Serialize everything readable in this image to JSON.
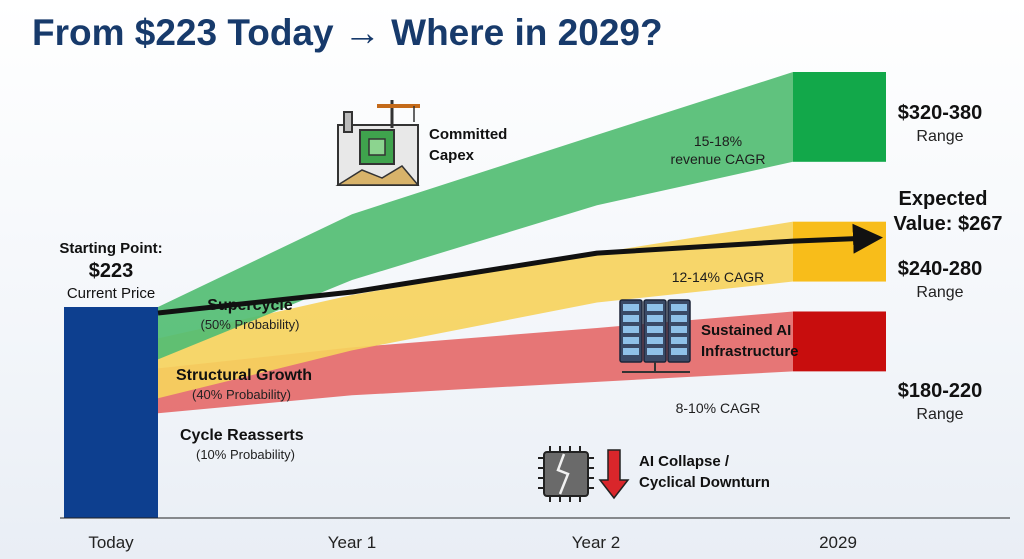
{
  "title": "From $223 Today → Where in 2029?",
  "chart_data": {
    "type": "area",
    "categories": [
      "Today",
      "Year 1",
      "Year 2",
      "2029"
    ],
    "ylim": [
      140,
      400
    ],
    "start": {
      "label": "Starting Point:",
      "value_label": "$223",
      "sublabel": "Current Price",
      "value": 223
    },
    "series": [
      {
        "name": "Supercycle",
        "probability": "(50% Probability)",
        "color": "#52bd73",
        "end_color": "#12a84a",
        "range_label": "$320-380",
        "range_sub": "Range",
        "cagr_label": "15-18% revenue CAGR",
        "upper": [
          223,
          285,
          338,
          380
        ],
        "lower": [
          188,
          241,
          291,
          320
        ]
      },
      {
        "name": "Structural Growth",
        "probability": "(40% Probability)",
        "color": "#f6d25d",
        "end_color": "#f8bd1a",
        "range_label": "$240-280",
        "range_sub": "Range",
        "cagr_label": "12-14% CAGR",
        "upper": [
          202,
          231,
          259,
          280
        ],
        "lower": [
          162,
          194,
          226,
          240
        ]
      },
      {
        "name": "Cycle Reasserts",
        "probability": "(10% Probability)",
        "color": "#e56a6a",
        "end_color": "#c80d0d",
        "range_label": "$180-220",
        "range_sub": "Range",
        "cagr_label": "8-10% CAGR",
        "upper": [
          182,
          196,
          209,
          220
        ],
        "lower": [
          152,
          164,
          173,
          180
        ]
      }
    ],
    "expected": {
      "label_line1": "Expected",
      "label_line2": "Value: $267",
      "values": [
        219,
        233,
        259,
        267,
        269
      ]
    },
    "annotations": [
      {
        "icon": "factory-chip-icon",
        "line1": "Committed",
        "line2": "Capex"
      },
      {
        "icon": "server-rack-icon",
        "line1": "Sustained AI",
        "line2": "Infrastructure"
      },
      {
        "icon": "broken-chip-icon",
        "line1": "AI Collapse /",
        "line2": "Cyclical Downturn"
      }
    ]
  }
}
